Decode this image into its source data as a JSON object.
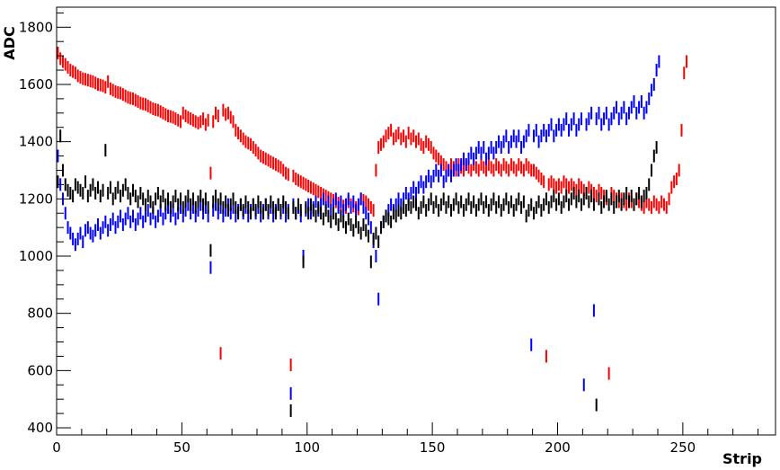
{
  "chart_data": {
    "type": "scatter",
    "title": "",
    "xlabel": "Strip",
    "ylabel": "ADC",
    "xlim": [
      0,
      287
    ],
    "ylim": [
      375,
      1870
    ],
    "x_ticks": [
      0,
      50,
      100,
      150,
      200,
      250
    ],
    "y_ticks": [
      400,
      600,
      800,
      1000,
      1200,
      1400,
      1600,
      1800
    ],
    "grid": false,
    "legend": "none",
    "error_bar_half_width": 22,
    "series": [
      {
        "color": "#ff0000",
        "values": [
          1710,
          1690,
          1680,
          1670,
          1660,
          1650,
          1645,
          1640,
          1630,
          1625,
          1620,
          1618,
          1615,
          1612,
          1610,
          1605,
          1600,
          1598,
          1595,
          1590,
          1610,
          1585,
          1580,
          1575,
          1572,
          1570,
          1565,
          1560,
          1555,
          1552,
          1550,
          1545,
          1540,
          1535,
          1532,
          1530,
          1525,
          1520,
          1515,
          1512,
          1510,
          1505,
          1500,
          1495,
          1490,
          1488,
          1485,
          1480,
          1475,
          1470,
          1500,
          1490,
          1485,
          1480,
          1475,
          1470,
          1465,
          1470,
          1480,
          1460,
          1475,
          1290,
          1470,
          1500,
          1490,
          660,
          1510,
          1495,
          1500,
          1485,
          1470,
          1440,
          1430,
          1420,
          1410,
          1400,
          1395,
          1390,
          1380,
          1370,
          1360,
          1350,
          1345,
          1340,
          1335,
          1330,
          1325,
          1320,
          1315,
          1310,
          1300,
          1290,
          1285,
          620,
          1280,
          1270,
          1265,
          1260,
          1255,
          1250,
          1245,
          1240,
          1235,
          1230,
          1225,
          1220,
          1215,
          1210,
          1205,
          1200,
          1195,
          1190,
          1185,
          1180,
          1175,
          1170,
          1190,
          1180,
          1175,
          1170,
          1165,
          1200,
          1195,
          1190,
          1180,
          1170,
          1160,
          1300,
          1380,
          1390,
          1400,
          1420,
          1430,
          1440,
          1410,
          1420,
          1430,
          1410,
          1420,
          1400,
          1430,
          1410,
          1420,
          1400,
          1410,
          1390,
          1380,
          1400,
          1390,
          1380,
          1360,
          1350,
          1340,
          1330,
          1320,
          1310,
          1300,
          1320,
          1310,
          1300,
          1320,
          1310,
          1300,
          1320,
          1310,
          1300,
          1320,
          1310,
          1300,
          1320,
          1310,
          1300,
          1320,
          1310,
          1300,
          1320,
          1310,
          1300,
          1320,
          1310,
          1300,
          1320,
          1310,
          1300,
          1320,
          1310,
          1300,
          1320,
          1310,
          1300,
          1300,
          1290,
          1280,
          1270,
          1260,
          650,
          1250,
          1260,
          1250,
          1240,
          1250,
          1240,
          1260,
          1250,
          1240,
          1250,
          1240,
          1230,
          1250,
          1240,
          1230,
          1220,
          1240,
          1230,
          1220,
          1210,
          1230,
          1220,
          1210,
          1200,
          590,
          1220,
          1210,
          1200,
          1190,
          1200,
          1190,
          1180,
          1200,
          1190,
          1180,
          1200,
          1190,
          1180,
          1170,
          1190,
          1180,
          1170,
          1190,
          1180,
          1170,
          1190,
          1180,
          1170,
          1200,
          1240,
          1260,
          1270,
          1300,
          1440,
          1640,
          1680
        ],
        "outliers": [
          [
            62,
            1290
          ],
          [
            66,
            660
          ],
          [
            94,
            620
          ],
          [
            194,
            650
          ],
          [
            222,
            590
          ]
        ]
      },
      {
        "color": "#0000ff",
        "values": [
          1350,
          1250,
          1200,
          1150,
          1100,
          1080,
          1060,
          1040,
          1060,
          1080,
          1050,
          1090,
          1100,
          1080,
          1070,
          1090,
          1110,
          1080,
          1100,
          1120,
          1090,
          1110,
          1130,
          1100,
          1120,
          1140,
          1110,
          1130,
          1150,
          1120,
          1140,
          1110,
          1130,
          1150,
          1120,
          1140,
          1160,
          1130,
          1150,
          1120,
          1140,
          1160,
          1130,
          1150,
          1170,
          1140,
          1160,
          1130,
          1150,
          1170,
          1140,
          1160,
          1180,
          1150,
          1170,
          1140,
          1160,
          1180,
          1150,
          1170,
          1140,
          960,
          1160,
          1180,
          1150,
          1170,
          1140,
          1160,
          1180,
          1150,
          1170,
          1140,
          1160,
          1180,
          1150,
          1170,
          1140,
          1160,
          1180,
          1150,
          1170,
          1140,
          1160,
          1180,
          1150,
          1170,
          1140,
          1160,
          1180,
          1150,
          1170,
          1140,
          1160,
          520,
          1180,
          1150,
          1170,
          1140,
          1000,
          1160,
          1180,
          1150,
          1170,
          1190,
          1160,
          1180,
          1200,
          1170,
          1190,
          1160,
          1180,
          1200,
          1170,
          1190,
          1160,
          1180,
          1200,
          1170,
          1190,
          1160,
          1180,
          1200,
          1170,
          1150,
          1130,
          1100,
          1050,
          1000,
          850,
          1100,
          1120,
          1140,
          1160,
          1180,
          1160,
          1180,
          1200,
          1180,
          1200,
          1220,
          1200,
          1220,
          1240,
          1220,
          1240,
          1260,
          1240,
          1260,
          1280,
          1260,
          1280,
          1300,
          1280,
          1300,
          1260,
          1280,
          1300,
          1280,
          1300,
          1320,
          1300,
          1320,
          1340,
          1320,
          1340,
          1360,
          1340,
          1360,
          1380,
          1360,
          1380,
          1340,
          1360,
          1380,
          1360,
          1380,
          1400,
          1380,
          1400,
          1420,
          1380,
          1400,
          1420,
          1400,
          1420,
          1380,
          1400,
          1420,
          1440,
          690,
          1420,
          1440,
          1400,
          1420,
          1440,
          1420,
          1440,
          1460,
          1420,
          1440,
          1460,
          1440,
          1460,
          1480,
          1440,
          1460,
          1480,
          1440,
          1460,
          1480,
          550,
          1460,
          1480,
          1500,
          810,
          1480,
          1500,
          1460,
          1480,
          1500,
          1460,
          1480,
          1500,
          1520,
          1480,
          1500,
          1520,
          1480,
          1500,
          1520,
          1540,
          1500,
          1520,
          1540,
          1500,
          1520,
          1550,
          1580,
          1600,
          1650,
          1680
        ],
        "outliers": [
          [
            62,
            960
          ],
          [
            94,
            520
          ],
          [
            98,
            1000
          ],
          [
            128,
            850
          ],
          [
            194,
            690
          ],
          [
            218,
            550
          ],
          [
            222,
            810
          ]
        ]
      },
      {
        "color": "#000000",
        "values": [
          1260,
          1420,
          1300,
          1250,
          1230,
          1220,
          1210,
          1250,
          1240,
          1230,
          1220,
          1260,
          1210,
          1230,
          1250,
          1220,
          1240,
          1210,
          1230,
          1370,
          1220,
          1240,
          1200,
          1220,
          1240,
          1210,
          1230,
          1250,
          1220,
          1200,
          1230,
          1210,
          1190,
          1220,
          1200,
          1180,
          1210,
          1190,
          1170,
          1200,
          1220,
          1190,
          1210,
          1180,
          1200,
          1170,
          1190,
          1210,
          1180,
          1200,
          1170,
          1190,
          1210,
          1180,
          1200,
          1170,
          1190,
          1210,
          1180,
          1200,
          1170,
          1020,
          1190,
          1210,
          1180,
          1200,
          1170,
          1190,
          1160,
          1180,
          1200,
          1170,
          1150,
          1180,
          1160,
          1190,
          1170,
          1150,
          1180,
          1160,
          1190,
          1170,
          1150,
          1180,
          1160,
          1190,
          1170,
          1150,
          1180,
          1160,
          1190,
          1170,
          1150,
          460,
          1170,
          1150,
          1180,
          1160,
          980,
          1170,
          1150,
          1180,
          1160,
          1140,
          1170,
          1150,
          1130,
          1160,
          1140,
          1120,
          1150,
          1130,
          1110,
          1140,
          1120,
          1100,
          1130,
          1110,
          1090,
          1120,
          1100,
          1080,
          1110,
          1090,
          1070,
          980,
          1060,
          1080,
          1050,
          1100,
          1120,
          1140,
          1130,
          1120,
          1150,
          1140,
          1160,
          1150,
          1170,
          1160,
          1180,
          1170,
          1190,
          1180,
          1150,
          1170,
          1190,
          1160,
          1180,
          1200,
          1170,
          1190,
          1160,
          1180,
          1200,
          1170,
          1190,
          1160,
          1180,
          1200,
          1170,
          1190,
          1160,
          1180,
          1200,
          1170,
          1190,
          1160,
          1180,
          1200,
          1170,
          1190,
          1160,
          1180,
          1200,
          1170,
          1190,
          1160,
          1180,
          1200,
          1170,
          1190,
          1160,
          1180,
          1200,
          1170,
          1190,
          1140,
          1160,
          1180,
          1150,
          1170,
          1190,
          1160,
          1180,
          1200,
          1170,
          1190,
          1210,
          1180,
          1200,
          1170,
          1190,
          1210,
          1180,
          1200,
          1220,
          1190,
          1210,
          1180,
          1200,
          1220,
          1190,
          1210,
          1180,
          480,
          1200,
          1170,
          1190,
          1210,
          1180,
          1200,
          1170,
          1190,
          1210,
          1180,
          1200,
          1220,
          1190,
          1210,
          1180,
          1200,
          1220,
          1190,
          1210,
          1220,
          1250,
          1300,
          1350,
          1380
        ],
        "outliers": [
          [
            62,
            1020
          ],
          [
            94,
            460
          ],
          [
            98,
            980
          ],
          [
            125,
            980
          ],
          [
            222,
            480
          ]
        ]
      }
    ]
  }
}
